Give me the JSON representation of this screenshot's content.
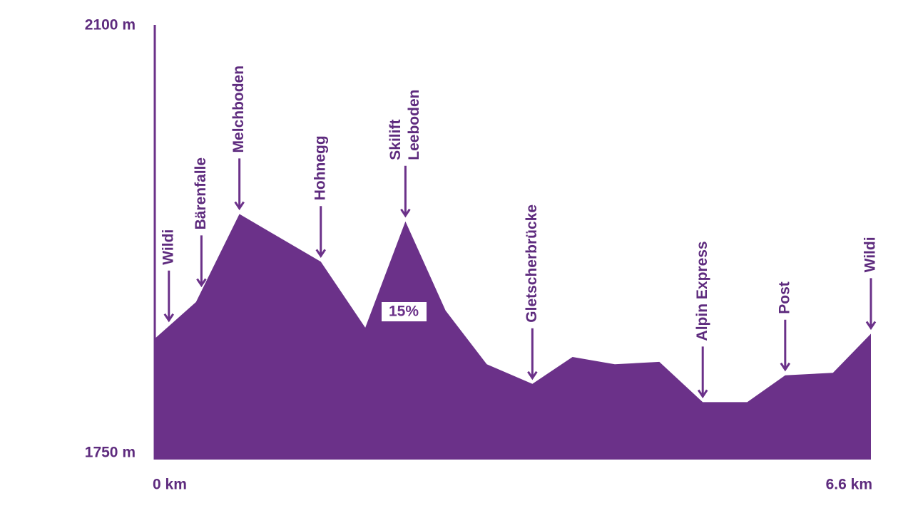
{
  "chart_data": {
    "type": "area",
    "color": "#6b3189",
    "x": [
      0,
      0.38,
      0.78,
      1.53,
      1.94,
      2.31,
      2.68,
      3.06,
      3.48,
      3.85,
      4.24,
      4.65,
      5.05,
      5.46,
      5.81,
      6.25,
      6.6
    ],
    "values": [
      1849,
      1879,
      1951,
      1912,
      1858,
      1945,
      1872,
      1828,
      1812,
      1834,
      1828,
      1830,
      1797,
      1797,
      1819,
      1821,
      1853
    ],
    "xlim": [
      0,
      6.6
    ],
    "ylim": [
      1750,
      2100
    ],
    "xticks": [
      {
        "value": 0,
        "label": "0 km"
      },
      {
        "value": 6.6,
        "label": "6.6 km"
      }
    ],
    "yticks": [
      {
        "value": 1750,
        "label": "1750 m"
      },
      {
        "value": 2100,
        "label": "2100 m"
      }
    ],
    "stops": [
      {
        "x": 0.13,
        "lines": [
          "Wildi"
        ]
      },
      {
        "x": 0.43,
        "lines": [
          "Bärenfalle"
        ]
      },
      {
        "x": 0.78,
        "lines": [
          "Melchboden"
        ]
      },
      {
        "x": 1.53,
        "lines": [
          "Hohnegg"
        ]
      },
      {
        "x": 2.31,
        "lines": [
          "Skilift",
          "Leeboden"
        ]
      },
      {
        "x": 3.48,
        "lines": [
          "Gletscherbrücke"
        ]
      },
      {
        "x": 5.05,
        "lines": [
          "Alpin Express"
        ]
      },
      {
        "x": 5.81,
        "lines": [
          "Post"
        ]
      },
      {
        "x": 6.6,
        "lines": [
          "Wildi"
        ]
      }
    ],
    "gradient_label": "15%"
  }
}
